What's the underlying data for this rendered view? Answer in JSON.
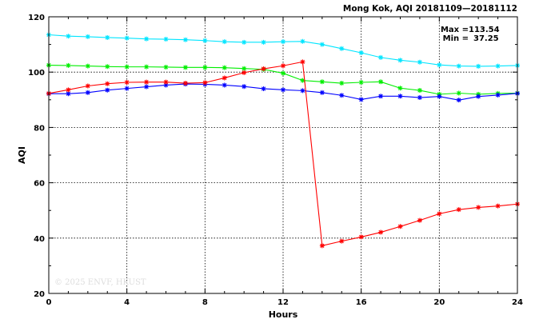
{
  "chart_data": {
    "type": "line",
    "title": "Mong Kok, AQI 20181109—20181112",
    "xlabel": "Hours",
    "ylabel": "AQI",
    "xlim": [
      0,
      24
    ],
    "ylim": [
      20,
      120
    ],
    "x_ticks": [
      0,
      4,
      8,
      12,
      16,
      20,
      24
    ],
    "y_ticks": [
      20,
      40,
      60,
      80,
      100,
      120
    ],
    "grid": true,
    "stats": {
      "max_label": "Max = ",
      "max_value": "113.54",
      "min_label": "Min = ",
      "min_value": "37.25"
    },
    "watermark": "© 2025  ENVF, HKUST",
    "x": [
      0,
      1,
      2,
      3,
      4,
      5,
      6,
      7,
      8,
      9,
      10,
      11,
      12,
      13,
      14,
      15,
      16,
      17,
      18,
      19,
      20,
      21,
      22,
      23,
      24
    ],
    "series": [
      {
        "color": "#00e5ff",
        "values": [
          113.5,
          113.0,
          112.8,
          112.5,
          112.3,
          112.0,
          111.9,
          111.7,
          111.4,
          111.0,
          110.8,
          110.8,
          111.0,
          111.1,
          110.0,
          108.5,
          107.0,
          105.3,
          104.3,
          103.6,
          102.6,
          102.2,
          102.1,
          102.2,
          102.4
        ]
      },
      {
        "color": "#00ee00",
        "values": [
          102.5,
          102.4,
          102.2,
          102.0,
          101.9,
          101.9,
          101.8,
          101.7,
          101.7,
          101.6,
          101.3,
          101.0,
          99.6,
          97.0,
          96.5,
          96.0,
          96.3,
          96.5,
          94.2,
          93.4,
          92.0,
          92.4,
          92.0,
          92.3,
          92.4
        ]
      },
      {
        "color": "#0000ff",
        "values": [
          92.2,
          92.2,
          92.6,
          93.5,
          94.1,
          94.7,
          95.3,
          95.7,
          95.6,
          95.3,
          94.8,
          94.0,
          93.6,
          93.3,
          92.6,
          91.6,
          90.1,
          91.3,
          91.3,
          90.8,
          91.2,
          89.9,
          91.2,
          91.7,
          92.3
        ]
      },
      {
        "color": "#ff0000",
        "values": [
          92.3,
          93.6,
          95.0,
          95.8,
          96.3,
          96.4,
          96.4,
          96.0,
          96.2,
          97.9,
          99.8,
          101.2,
          102.3,
          103.7,
          37.25,
          38.9,
          40.4,
          42.1,
          44.2,
          46.4,
          48.8,
          50.3,
          51.1,
          51.6,
          52.3
        ]
      }
    ]
  }
}
